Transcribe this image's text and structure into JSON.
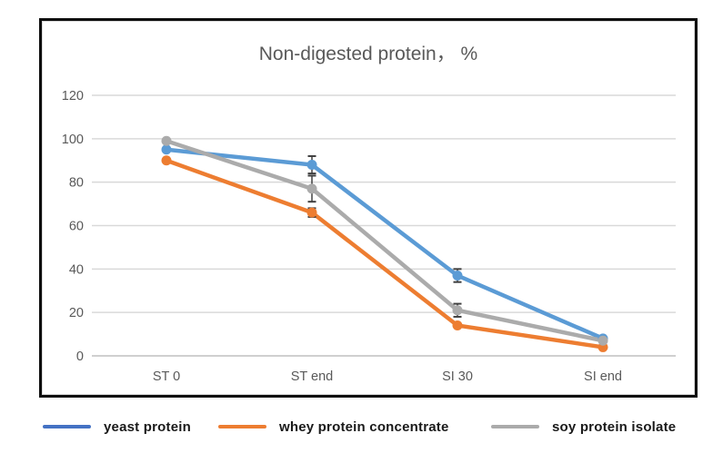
{
  "chart_data": {
    "type": "line",
    "title": "Non-digested protein， %",
    "categories": [
      "ST 0",
      "ST end",
      "SI 30",
      "SI end"
    ],
    "series": [
      {
        "name": "yeast protein",
        "legend_color": "#4472C4",
        "line_color": "#5B9BD5",
        "values": [
          95,
          88,
          37,
          8
        ],
        "errors": [
          0,
          4,
          3,
          0
        ]
      },
      {
        "name": "whey protein concentrate",
        "legend_color": "#ED7D31",
        "line_color": "#ED7D31",
        "values": [
          90,
          66,
          14,
          4
        ],
        "errors": [
          0,
          2,
          0,
          0
        ]
      },
      {
        "name": "soy protein isolate",
        "legend_color": "#ABABAB",
        "line_color": "#ABABAB",
        "values": [
          99,
          77,
          21,
          7
        ],
        "errors": [
          0,
          6,
          3,
          0
        ]
      }
    ],
    "y_ticks": [
      0,
      20,
      40,
      60,
      80,
      100,
      120
    ],
    "ylim": [
      0,
      120
    ],
    "grid": true,
    "legend_position": "bottom",
    "xlabel": "",
    "ylabel": "",
    "colors": {
      "gridline": "#d9d9d9",
      "axis_line": "#bfbfbf",
      "tick_text": "#595959",
      "title_text": "#595959",
      "error_bar": "#404040",
      "frame_border": "#0d0d0d",
      "legend_text": "#1a1a1a"
    }
  }
}
